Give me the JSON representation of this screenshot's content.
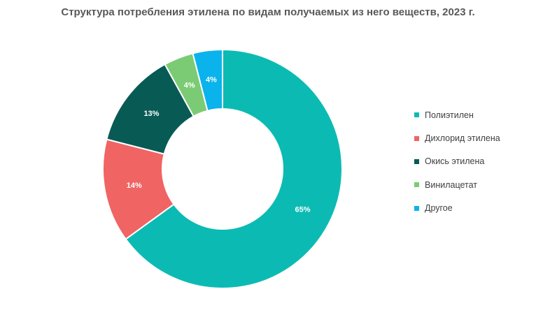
{
  "chart_data": {
    "type": "pie",
    "title": "Структура потребления этилена по видам получаемых из него веществ, 2023 г.",
    "donut": true,
    "legend_position": "right",
    "categories": [
      "Полиэтилен",
      "Дихлорид этилена",
      "Окись этилена",
      "Винилацетат",
      "Другое"
    ],
    "values": [
      65,
      14,
      13,
      4,
      4
    ],
    "labels": [
      "65%",
      "14%",
      "13%",
      "4%",
      "4%"
    ],
    "colors": [
      "#0BBBB3",
      "#F06464",
      "#085A55",
      "#7BCB74",
      "#0AB3EC"
    ]
  }
}
